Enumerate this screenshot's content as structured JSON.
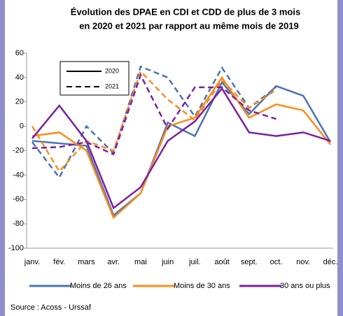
{
  "chart_data": {
    "type": "line",
    "title": [
      "Évolution des DPAE en CDI et CDD de plus de 3 mois",
      "en 2020 et 2021 par rapport au même mois de 2019"
    ],
    "categories": [
      "janv.",
      "fév.",
      "mars",
      "avr.",
      "mai",
      "juin",
      "juil.",
      "août",
      "sept.",
      "oct.",
      "nov.",
      "déc."
    ],
    "years": [
      {
        "label": "2020",
        "dash": "none"
      },
      {
        "label": "2021",
        "dash": "8 5"
      }
    ],
    "series": [
      {
        "name": "Moins de 26 ans",
        "color": "#4a74b0",
        "values": [
          -12,
          -14,
          -16,
          -73,
          -55,
          3,
          -8,
          36,
          10,
          33,
          25,
          -13
        ],
        "values_2021": [
          -13,
          -42,
          0,
          -22,
          49,
          40,
          8,
          48,
          15,
          32,
          null,
          null
        ]
      },
      {
        "name": "Moins de 30 ans",
        "color": "#ff8c1a",
        "values": [
          -8,
          -5,
          -20,
          -75,
          -55,
          0,
          7,
          40,
          7,
          18,
          13,
          -15
        ],
        "values_2021": [
          0,
          -37,
          -12,
          -20,
          45,
          22,
          5,
          38,
          15,
          30,
          null,
          null
        ]
      },
      {
        "name": "30 ans ou plus",
        "color": "#7a1fa2",
        "values": [
          -10,
          17,
          -12,
          -67,
          -50,
          -12,
          4,
          31,
          -5,
          -8,
          -5,
          -12
        ],
        "values_2021": [
          -18,
          -17,
          -13,
          -23,
          42,
          -2,
          32,
          32,
          13,
          6,
          null,
          null
        ]
      }
    ],
    "ylim": [
      -100,
      60
    ],
    "yticks": [
      -100,
      -80,
      -60,
      -40,
      -20,
      0,
      20,
      40,
      60
    ],
    "source": "Source : Acoss - Urssaf"
  }
}
